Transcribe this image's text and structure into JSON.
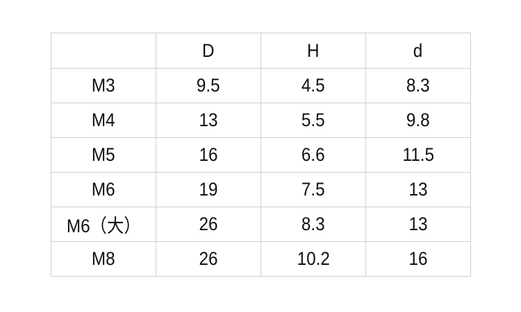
{
  "table": {
    "headers": [
      "",
      "D",
      "H",
      "d"
    ],
    "rows": [
      [
        "M3",
        "9.5",
        "4.5",
        "8.3"
      ],
      [
        "M4",
        "13",
        "5.5",
        "9.8"
      ],
      [
        "M5",
        "16",
        "6.6",
        "11.5"
      ],
      [
        "M6",
        "19",
        "7.5",
        "13"
      ],
      [
        "M6（大）",
        "26",
        "8.3",
        "13"
      ],
      [
        "M8",
        "26",
        "10.2",
        "16"
      ]
    ]
  }
}
